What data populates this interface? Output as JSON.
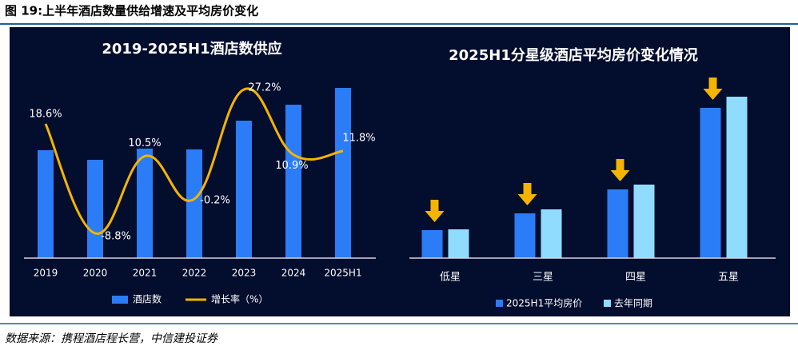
{
  "header": {
    "title": "图 19:上半年酒店数量供给增速及平均房价变化"
  },
  "footer": {
    "source": "数据来源：携程酒店程长营，中信建投证券"
  },
  "chart_data": [
    {
      "type": "combo",
      "title": "2019-2025H1酒店数供应",
      "categories": [
        "2019",
        "2020",
        "2021",
        "2022",
        "2023",
        "2024",
        "2025H1"
      ],
      "ylim": [
        0,
        225
      ],
      "y2lim": [
        -15,
        30
      ],
      "series": [
        {
          "name": "酒店数",
          "type": "bar",
          "color": "#2b7cf7",
          "values": [
            135,
            123,
            137,
            136,
            172,
            192,
            213
          ]
        },
        {
          "name": "增长率（%）",
          "type": "line",
          "axis": "y2",
          "color": "#f4b400",
          "values": [
            18.6,
            -8.8,
            10.5,
            -0.2,
            27.2,
            10.9,
            11.8
          ],
          "value_labels": [
            "18.6%",
            "-8.8%",
            "10.5%",
            "-0.2%",
            "27.2%",
            "10.9%",
            "11.8%"
          ]
        }
      ]
    },
    {
      "type": "bar",
      "title": "2025H1分星级酒店平均房价变化情况",
      "categories": [
        "低星",
        "三星",
        "四星",
        "五星"
      ],
      "ylim": [
        0,
        225
      ],
      "series": [
        {
          "name": "2025H1平均房价",
          "color": "#2b7cf7",
          "values": [
            35,
            56,
            86,
            188
          ]
        },
        {
          "name": "去年同期",
          "color": "#8fdcff",
          "values": [
            36,
            61,
            92,
            202
          ]
        }
      ]
    }
  ]
}
